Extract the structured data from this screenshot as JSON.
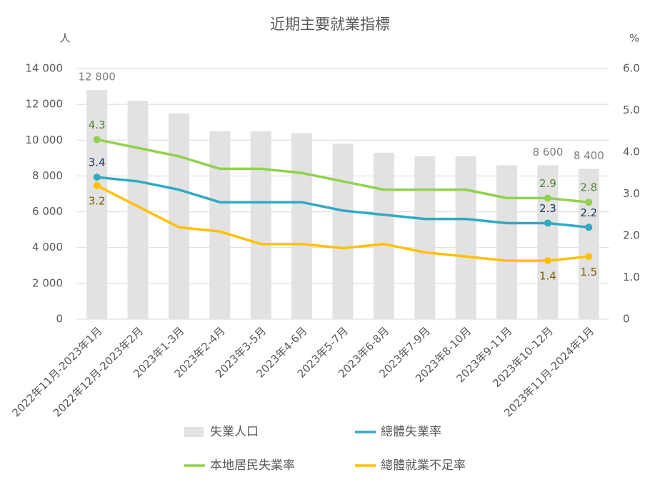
{
  "chart_data": {
    "type": "bar-line",
    "title": "近期主要就業指標",
    "y_label": "人",
    "y2_label": "%",
    "categories": [
      "2022年11月-2023年1月",
      "2022年12月-2023年2月",
      "2023年1-3月",
      "2023年2-4月",
      "2023年3-5月",
      "2023年4-6月",
      "2023年5-7月",
      "2023年6-8月",
      "2023年7-9月",
      "2023年8-10月",
      "2023年9-11月",
      "2023年10-12月",
      "2023年11月-2024年1月"
    ],
    "ylim": [
      0,
      14000
    ],
    "yticks": [
      0,
      {
        "value": 2000,
        "label": "2 000"
      },
      {
        "value": 4000,
        "label": "4 000"
      },
      {
        "value": 6000,
        "label": "6 000"
      },
      {
        "value": 8000,
        "label": "8 000"
      },
      {
        "value": 10000,
        "label": "10 000"
      },
      {
        "value": 12000,
        "label": "12 000"
      },
      {
        "value": 14000,
        "label": "14 000"
      }
    ],
    "y2lim": [
      0,
      6
    ],
    "y2ticks": [
      0,
      {
        "value": 1,
        "label": "1.0"
      },
      {
        "value": 2,
        "label": "2.0"
      },
      {
        "value": 3,
        "label": "3.0"
      },
      {
        "value": 4,
        "label": "4.0"
      },
      {
        "value": 5,
        "label": "5.0"
      },
      {
        "value": 6,
        "label": "6.0"
      }
    ],
    "grid": true,
    "series": [
      {
        "name": "失業人口",
        "type": "bar",
        "color": "#e2e2e2",
        "label_color": "#808080",
        "label_position": "above",
        "values": [
          12800,
          12200,
          11500,
          10500,
          10500,
          10400,
          9800,
          9300,
          9100,
          9100,
          8600,
          8600,
          8400
        ],
        "value_labels": [
          "12 800",
          null,
          null,
          null,
          null,
          null,
          null,
          null,
          null,
          null,
          null,
          "8 600",
          "8 400"
        ]
      },
      {
        "name": "總體失業率",
        "type": "line",
        "axis": "y2",
        "color": "#31a9c1",
        "label_color": "#1f3864",
        "label_position": "above",
        "values": [
          3.4,
          3.3,
          3.1,
          2.8,
          2.8,
          2.8,
          2.6,
          2.5,
          2.4,
          2.4,
          2.3,
          2.3,
          2.2
        ],
        "value_labels": [
          "3.4",
          null,
          null,
          null,
          null,
          null,
          null,
          null,
          null,
          null,
          null,
          "2.3",
          "2.2"
        ]
      },
      {
        "name": "本地居民失業率",
        "type": "line",
        "axis": "y2",
        "color": "#92d050",
        "label_color": "#548235",
        "label_position": "above",
        "values": [
          4.3,
          4.1,
          3.9,
          3.6,
          3.6,
          3.5,
          3.3,
          3.1,
          3.1,
          3.1,
          2.9,
          2.9,
          2.8
        ],
        "value_labels": [
          "4.3",
          null,
          null,
          null,
          null,
          null,
          null,
          null,
          null,
          null,
          null,
          "2.9",
          "2.8"
        ]
      },
      {
        "name": "總體就業不足率",
        "type": "line",
        "axis": "y2",
        "color": "#ffc000",
        "label_color": "#7f6000",
        "label_position": "below",
        "values": [
          3.2,
          2.7,
          2.2,
          2.1,
          1.8,
          1.8,
          1.7,
          1.8,
          1.6,
          1.5,
          1.4,
          1.4,
          1.5
        ],
        "value_labels": [
          "3.2",
          null,
          null,
          null,
          null,
          null,
          null,
          null,
          null,
          null,
          null,
          "1.4",
          "1.5"
        ]
      }
    ]
  }
}
